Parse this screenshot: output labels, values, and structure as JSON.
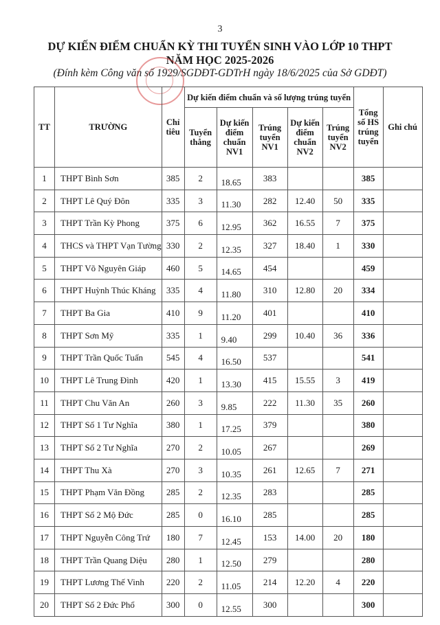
{
  "page_number": "3",
  "title_line1": "DỰ KIẾN ĐIỂM CHUẨN KỲ THI TUYỂN SINH VÀO LỚP 10 THPT",
  "title_line2": "NĂM HỌC 2025-2026",
  "subtitle": "(Đính kèm Công văn số 1929/SGDĐT-GDTrH ngày 18/6/2025 của Sở GDĐT)",
  "stamp_text": "SỞ GIÁO DỤC VÀ ĐÀO TẠO",
  "headers": {
    "tt": "TT",
    "truong": "TRƯỜNG",
    "chi_tieu": "Chỉ tiêu",
    "group": "Dự kiến điểm chuẩn và số lượng trúng tuyển",
    "tuyen_thang": "Tuyển thẳng",
    "dk_nv1": "Dự kiến điểm chuẩn NV1",
    "tt_nv1": "Trúng tuyển NV1",
    "dk_nv2": "Dự kiến điểm chuẩn NV2",
    "tt_nv2": "Trúng tuyển NV2",
    "tong": "Tổng số HS trúng tuyển",
    "ghi_chu": "Ghi chú"
  },
  "rows": [
    [
      "1",
      "THPT Bình Sơn",
      "385",
      "2",
      "18.65",
      "383",
      "",
      "",
      "385",
      ""
    ],
    [
      "2",
      "THPT Lê Quý Đôn",
      "335",
      "3",
      "11.30",
      "282",
      "12.40",
      "50",
      "335",
      ""
    ],
    [
      "3",
      "THPT Trần Kỳ Phong",
      "375",
      "6",
      "12.95",
      "362",
      "16.55",
      "7",
      "375",
      ""
    ],
    [
      "4",
      "THCS và THPT Vạn Tường",
      "330",
      "2",
      "12.35",
      "327",
      "18.40",
      "1",
      "330",
      ""
    ],
    [
      "5",
      "THPT Võ Nguyên Giáp",
      "460",
      "5",
      "14.65",
      "454",
      "",
      "",
      "459",
      ""
    ],
    [
      "6",
      "THPT Huỳnh Thúc Kháng",
      "335",
      "4",
      "11.80",
      "310",
      "12.80",
      "20",
      "334",
      ""
    ],
    [
      "7",
      "THPT Ba Gia",
      "410",
      "9",
      "11.20",
      "401",
      "",
      "",
      "410",
      ""
    ],
    [
      "8",
      "THPT Sơn Mỹ",
      "335",
      "1",
      "9.40",
      "299",
      "10.40",
      "36",
      "336",
      ""
    ],
    [
      "9",
      "THPT Trần Quốc Tuấn",
      "545",
      "4",
      "16.50",
      "537",
      "",
      "",
      "541",
      ""
    ],
    [
      "10",
      "THPT Lê Trung Đình",
      "420",
      "1",
      "13.30",
      "415",
      "15.55",
      "3",
      "419",
      ""
    ],
    [
      "11",
      "THPT Chu Văn An",
      "260",
      "3",
      "9.85",
      "222",
      "11.30",
      "35",
      "260",
      ""
    ],
    [
      "12",
      "THPT Số 1 Tư Nghĩa",
      "380",
      "1",
      "17.25",
      "379",
      "",
      "",
      "380",
      ""
    ],
    [
      "13",
      "THPT Số 2 Tư Nghĩa",
      "270",
      "2",
      "10.05",
      "267",
      "",
      "",
      "269",
      ""
    ],
    [
      "14",
      "THPT Thu Xà",
      "270",
      "3",
      "10.35",
      "261",
      "12.65",
      "7",
      "271",
      ""
    ],
    [
      "15",
      "THPT Phạm Văn Đồng",
      "285",
      "2",
      "12.35",
      "283",
      "",
      "",
      "285",
      ""
    ],
    [
      "16",
      "THPT Số 2 Mộ Đức",
      "285",
      "0",
      "16.10",
      "285",
      "",
      "",
      "285",
      ""
    ],
    [
      "17",
      "THPT Nguyễn Công Trứ",
      "180",
      "7",
      "12.45",
      "153",
      "14.00",
      "20",
      "180",
      ""
    ],
    [
      "18",
      "THPT Trần Quang Diệu",
      "280",
      "1",
      "12.50",
      "279",
      "",
      "",
      "280",
      ""
    ],
    [
      "19",
      "THPT Lương Thế Vinh",
      "220",
      "2",
      "11.05",
      "214",
      "12.20",
      "4",
      "220",
      ""
    ],
    [
      "20",
      "THPT Số 2 Đức Phổ",
      "300",
      "0",
      "12.55",
      "300",
      "",
      "",
      "300",
      ""
    ]
  ]
}
